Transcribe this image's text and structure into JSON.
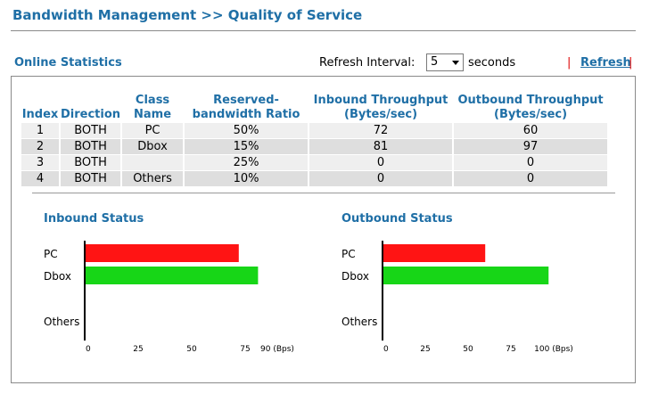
{
  "header": {
    "title": "Bandwidth Management >> Quality of Service"
  },
  "section": {
    "title": "Online Statistics"
  },
  "refresh": {
    "label": "Refresh Interval:",
    "value": "5",
    "unit": "seconds",
    "link": "Refresh",
    "separator": "|"
  },
  "table": {
    "headers": [
      "Index",
      "Direction",
      "Class Name",
      "Reserved-bandwidth Ratio",
      "Inbound Throughput (Bytes/sec)",
      "Outbound Throughput (Bytes/sec)"
    ],
    "header_lines": {
      "index": "Index",
      "direction": "Direction",
      "class_1": "Class",
      "class_2": "Name",
      "ratio_1": "Reserved-",
      "ratio_2": "bandwidth Ratio",
      "inbound_1": "Inbound Throughput",
      "inbound_2": "(Bytes/sec)",
      "outbound_1": "Outbound Throughput",
      "outbound_2": "(Bytes/sec)"
    },
    "rows": [
      {
        "index": "1",
        "direction": "BOTH",
        "class": "PC",
        "ratio": "50%",
        "inbound": "72",
        "outbound": "60"
      },
      {
        "index": "2",
        "direction": "BOTH",
        "class": "Dbox",
        "ratio": "15%",
        "inbound": "81",
        "outbound": "97"
      },
      {
        "index": "3",
        "direction": "BOTH",
        "class": "",
        "ratio": "25%",
        "inbound": "0",
        "outbound": "0"
      },
      {
        "index": "4",
        "direction": "BOTH",
        "class": "Others",
        "ratio": "10%",
        "inbound": "0",
        "outbound": "0"
      }
    ]
  },
  "chart_data": [
    {
      "type": "bar",
      "title": "Inbound Status",
      "categories": [
        "PC",
        "Dbox",
        "",
        "Others"
      ],
      "values": [
        72,
        81,
        0,
        0
      ],
      "colors": [
        "#ff1414",
        "#17d617",
        null,
        null
      ],
      "xlim": [
        0,
        100
      ],
      "ticks": [
        0,
        25,
        50,
        75
      ],
      "tick_labels": [
        "0",
        "25",
        "50",
        "75",
        "90 (Bps)"
      ],
      "unit_tick_value": 90,
      "grid": false
    },
    {
      "type": "bar",
      "title": "Outbound Status",
      "categories": [
        "PC",
        "Dbox",
        "",
        "Others"
      ],
      "values": [
        60,
        97,
        0,
        0
      ],
      "colors": [
        "#ff1414",
        "#17d617",
        null,
        null
      ],
      "xlim": [
        0,
        125
      ],
      "ticks": [
        0,
        25,
        50,
        75
      ],
      "tick_labels": [
        "0",
        "25",
        "50",
        "75",
        "100 (Bps)"
      ],
      "unit_tick_value": 100,
      "grid": false
    }
  ]
}
